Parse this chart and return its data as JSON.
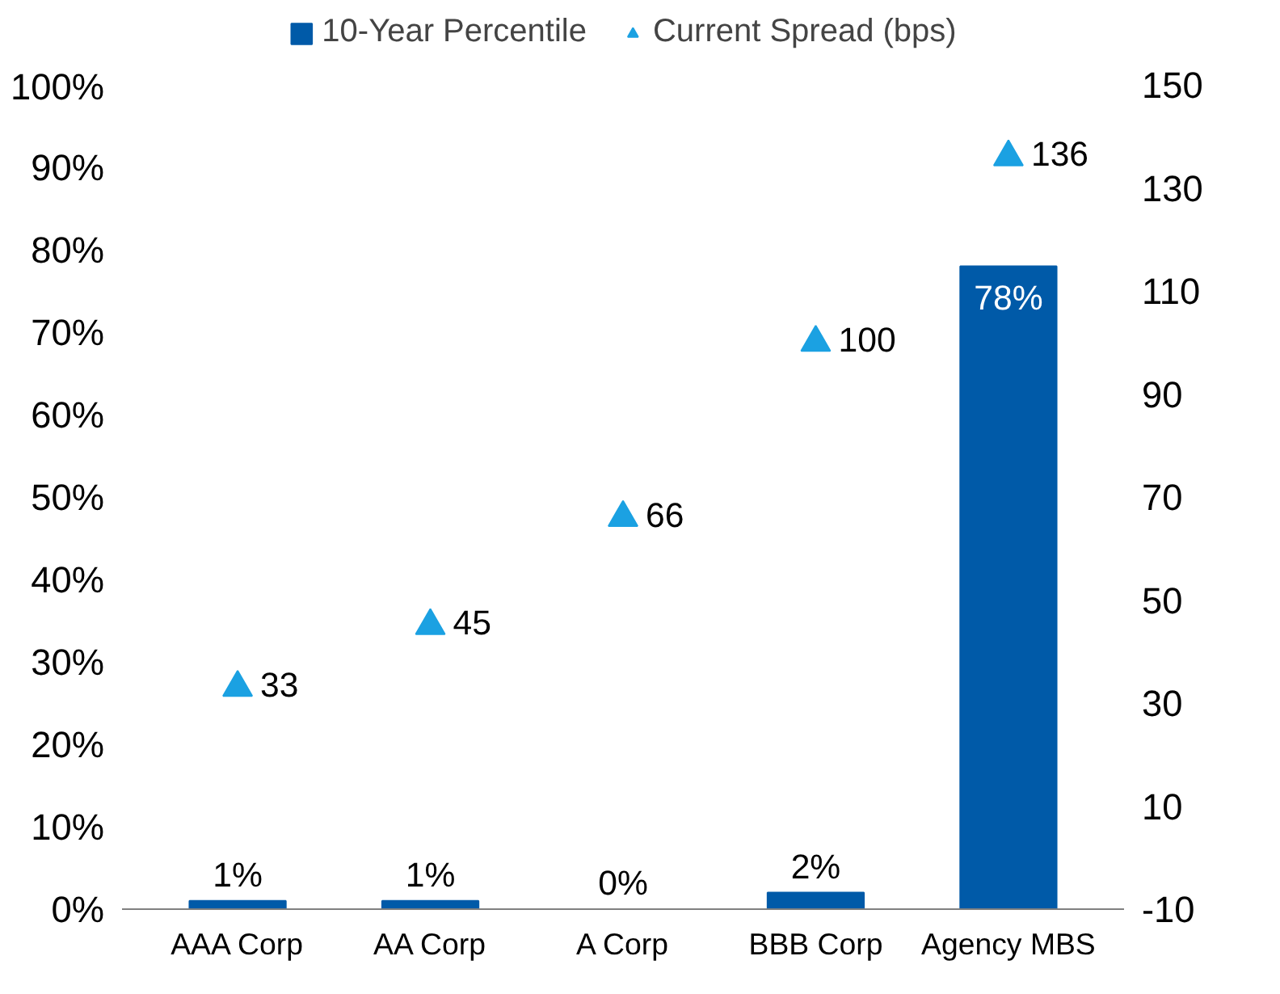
{
  "chart_data": {
    "type": "bar",
    "categories": [
      "AAA Corp",
      "AA Corp",
      "A Corp",
      "BBB Corp",
      "Agency MBS"
    ],
    "series": [
      {
        "name": "10-Year Percentile",
        "color": "#005aa8",
        "values": [
          1,
          1,
          0,
          2,
          78
        ],
        "value_labels": [
          "1%",
          "1%",
          "0%",
          "2%",
          "78%"
        ]
      },
      {
        "name": "Current Spread (bps)",
        "type": "scatter",
        "axis": "y2",
        "marker": "triangle",
        "color": "#1ba1e2",
        "values": [
          33,
          45,
          66,
          100,
          136
        ],
        "value_labels": [
          "33",
          "45",
          "66",
          "100",
          "136"
        ]
      }
    ],
    "ylim": [
      0,
      100
    ],
    "yticks": [
      {
        "value": 0,
        "label": "0%"
      },
      {
        "value": 10,
        "label": "10%"
      },
      {
        "value": 20,
        "label": "20%"
      },
      {
        "value": 30,
        "label": "30%"
      },
      {
        "value": 40,
        "label": "40%"
      },
      {
        "value": 50,
        "label": "50%"
      },
      {
        "value": 60,
        "label": "60%"
      },
      {
        "value": 70,
        "label": "70%"
      },
      {
        "value": 80,
        "label": "80%"
      },
      {
        "value": 90,
        "label": "90%"
      },
      {
        "value": 100,
        "label": "100%"
      }
    ],
    "y2lim": [
      -10,
      150
    ],
    "y2ticks": [
      -10,
      10,
      30,
      50,
      70,
      90,
      110,
      130,
      150
    ],
    "grid": false,
    "legend": "top"
  }
}
